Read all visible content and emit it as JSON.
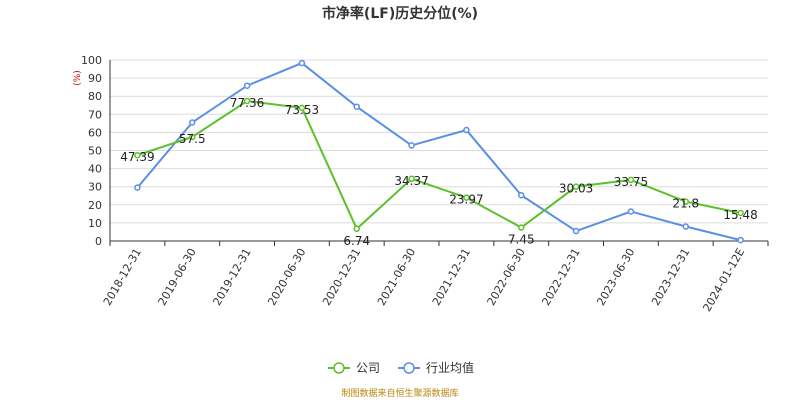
{
  "chart_data": {
    "type": "line",
    "title": "市净率(LF)历史分位(%)",
    "ylabel": "(%)",
    "xlabel": "",
    "ylim": [
      0,
      100
    ],
    "yticks": [
      0,
      10,
      20,
      30,
      40,
      50,
      60,
      70,
      80,
      90,
      100
    ],
    "grid": true,
    "legend_position": "bottom-center",
    "categories": [
      "2018-12-31",
      "2019-06-30",
      "2019-12-31",
      "2020-06-30",
      "2020-12-31",
      "2021-06-30",
      "2021-12-31",
      "2022-06-30",
      "2022-12-31",
      "2023-06-30",
      "2023-12-31",
      "2024-01-12E"
    ],
    "series": [
      {
        "name": "公司",
        "color": "#5bc12b",
        "values": [
          47.39,
          57.5,
          77.36,
          73.53,
          6.74,
          34.37,
          23.97,
          7.45,
          30.03,
          33.75,
          21.8,
          15.48
        ],
        "data_labels": [
          "47.39",
          "57.5",
          "77.36",
          "73.53",
          "6.74",
          "34.37",
          "23.97",
          "7.45",
          "30.03",
          "33.75",
          "21.8",
          "15.48"
        ]
      },
      {
        "name": "行业均值",
        "color": "#5b8ee6",
        "values": [
          29.5,
          65.5,
          85.8,
          98.3,
          74.2,
          52.8,
          61.3,
          25.3,
          5.5,
          16.3,
          8.0,
          0.5
        ]
      }
    ]
  },
  "footer": {
    "source": "制图数据来自恒生聚源数据库"
  }
}
